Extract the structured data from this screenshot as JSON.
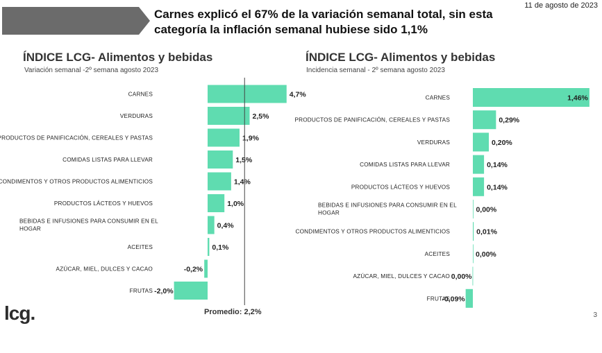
{
  "header": {
    "headline_line1": "Carnes explicó el 67% de la variación semanal total, sin esta",
    "headline_line2": "categoría la inflación semanal hubiese sido 1,1%",
    "date": "11 de agosto de 2023",
    "banner_color": "#6b6b6b"
  },
  "footer": {
    "logo": "lcg.",
    "page_number": "3",
    "average_label": "Promedio: 2,2%"
  },
  "colors": {
    "bar": "#5fdcb0",
    "avg_line": "#444444"
  },
  "chart_data": [
    {
      "type": "bar",
      "orientation": "horizontal",
      "title": "ÍNDICE LCG- Alimentos y bebidas",
      "subtitle": "Variación semanal -2º semana agosto 2023",
      "categories": [
        [
          "CARNES"
        ],
        [
          "VERDURAS"
        ],
        [
          "PRODUCTOS DE PANIFICACIÓN, CEREALES Y PASTAS"
        ],
        [
          "COMIDAS LISTAS PARA LLEVAR"
        ],
        [
          "CONDIMENTOS Y OTROS PRODUCTOS ALIMENTICIOS"
        ],
        [
          "PRODUCTOS LÁCTEOS Y HUEVOS"
        ],
        [
          "BEBIDAS E INFUSIONES PARA CONSUMIR EN EL",
          "HOGAR"
        ],
        [
          "ACEITES"
        ],
        [
          "AZÚCAR, MIEL, DULCES Y CACAO"
        ],
        [
          "FRUTAS"
        ]
      ],
      "values": [
        4.7,
        2.5,
        1.9,
        1.5,
        1.4,
        1.0,
        0.4,
        0.1,
        -0.2,
        -2.0
      ],
      "labels": [
        "4,7%",
        "2,5%",
        "1,9%",
        "1,5%",
        "1,4%",
        "1,0%",
        "0,4%",
        "0,1%",
        "-0,2%",
        "-2,0%"
      ],
      "reference_line": {
        "value": 2.2,
        "label": "Promedio: 2,2%"
      }
    },
    {
      "type": "bar",
      "orientation": "horizontal",
      "title": "ÍNDICE LCG- Alimentos y bebidas",
      "subtitle": "Incidencia semanal - 2º semana agosto 2023",
      "categories": [
        [
          "CARNES"
        ],
        [
          "PRODUCTOS DE PANIFICACIÓN, CEREALES Y PASTAS"
        ],
        [
          "VERDURAS"
        ],
        [
          "COMIDAS LISTAS PARA LLEVAR"
        ],
        [
          "PRODUCTOS LÁCTEOS Y HUEVOS"
        ],
        [
          "BEBIDAS E INFUSIONES PARA CONSUMIR EN EL",
          "HOGAR"
        ],
        [
          "CONDIMENTOS Y OTROS PRODUCTOS ALIMENTICIOS"
        ],
        [
          "ACEITES"
        ],
        [
          "AZÚCAR, MIEL, DULCES Y CACAO"
        ],
        [
          "FRUTAS"
        ]
      ],
      "values": [
        1.46,
        0.29,
        0.2,
        0.14,
        0.14,
        0.004,
        0.01,
        0.0,
        -0.004,
        -0.09
      ],
      "labels": [
        "1,46%",
        "0,29%",
        "0,20%",
        "0,14%",
        "0,14%",
        "0,00%",
        "0,01%",
        "0,00%",
        "0,00%",
        "-0,09%"
      ]
    }
  ]
}
